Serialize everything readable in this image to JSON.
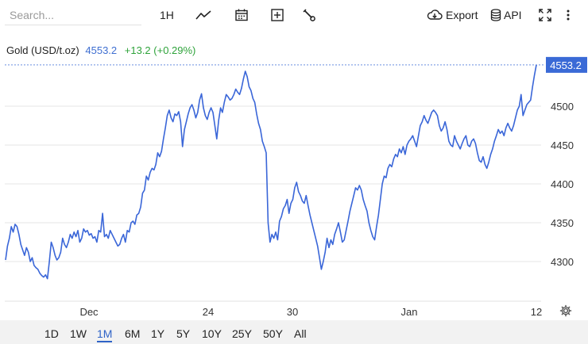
{
  "toolbar": {
    "search_placeholder": "Search...",
    "interval_label": "1H",
    "export_label": "Export",
    "api_label": "API",
    "icons": [
      "line-chart-icon",
      "calendar-icon",
      "plus-square-icon",
      "wrench-icon",
      "cloud-download-icon",
      "database-icon",
      "fullscreen-icon",
      "more-vertical-icon"
    ]
  },
  "symbol": {
    "name": "Gold (USD/t.oz)",
    "price": "4553.2",
    "change": "+13.2 (+0.29%)"
  },
  "ranges": [
    "1D",
    "1W",
    "1M",
    "6M",
    "1Y",
    "5Y",
    "10Y",
    "25Y",
    "50Y",
    "All"
  ],
  "active_range": "1M",
  "colors": {
    "line": "#3a66d8",
    "accent": "#2f63c7",
    "positive": "#2fa33b",
    "price_tag": "#3a6ad6"
  },
  "chart_data": {
    "type": "line",
    "title": "",
    "xlabel": "",
    "ylabel": "",
    "x_ticks": [
      "Dec",
      "24",
      "30",
      "Jan",
      "12"
    ],
    "y_ticks": [
      4300,
      4350,
      4400,
      4450,
      4500
    ],
    "ylim": [
      4270,
      4580
    ],
    "grid": "horizontal",
    "last_value_label": "4553.2",
    "series": [
      {
        "name": "",
        "values": [
          4302,
          4320,
          4330,
          4345,
          4338,
          4348,
          4345,
          4335,
          4322,
          4315,
          4308,
          4318,
          4312,
          4300,
          4305,
          4295,
          4292,
          4290,
          4285,
          4282,
          4280,
          4283,
          4278,
          4300,
          4325,
          4318,
          4308,
          4302,
          4305,
          4312,
          4330,
          4322,
          4318,
          4325,
          4335,
          4330,
          4338,
          4332,
          4340,
          4325,
          4330,
          4342,
          4338,
          4340,
          4334,
          4336,
          4330,
          4332,
          4325,
          4340,
          4338,
          4362,
          4332,
          4335,
          4330,
          4340,
          4335,
          4330,
          4325,
          4320,
          4322,
          4330,
          4335,
          4325,
          4340,
          4338,
          4350,
          4352,
          4348,
          4360,
          4362,
          4370,
          4388,
          4392,
          4410,
          4405,
          4415,
          4420,
          4418,
          4425,
          4440,
          4435,
          4442,
          4458,
          4472,
          4488,
          4495,
          4485,
          4480,
          4490,
          4488,
          4493,
          4480,
          4448,
          4470,
          4480,
          4490,
          4498,
          4502,
          4495,
          4485,
          4492,
          4508,
          4516,
          4498,
          4488,
          4483,
          4492,
          4498,
          4492,
          4475,
          4458,
          4482,
          4498,
          4492,
          4505,
          4515,
          4512,
          4508,
          4510,
          4515,
          4522,
          4518,
          4515,
          4523,
          4535,
          4545,
          4538,
          4525,
          4520,
          4510,
          4505,
          4490,
          4478,
          4470,
          4455,
          4448,
          4440,
          4350,
          4325,
          4335,
          4330,
          4338,
          4328,
          4352,
          4358,
          4368,
          4372,
          4380,
          4362,
          4375,
          4380,
          4395,
          4402,
          4390,
          4385,
          4378,
          4375,
          4385,
          4372,
          4360,
          4350,
          4340,
          4330,
          4320,
          4305,
          4290,
          4300,
          4312,
          4330,
          4318,
          4328,
          4322,
          4335,
          4342,
          4350,
          4338,
          4325,
          4328,
          4340,
          4352,
          4365,
          4375,
          4385,
          4395,
          4392,
          4398,
          4392,
          4380,
          4372,
          4365,
          4350,
          4340,
          4332,
          4328,
          4345,
          4360,
          4380,
          4400,
          4410,
          4408,
          4420,
          4425,
          4422,
          4432,
          4438,
          4435,
          4445,
          4440,
          4448,
          4438,
          4450,
          4455,
          4458,
          4462,
          4455,
          4448,
          4462,
          4475,
          4480,
          4488,
          4482,
          4478,
          4485,
          4492,
          4495,
          4492,
          4488,
          4475,
          4468,
          4472,
          4480,
          4470,
          4455,
          4450,
          4448,
          4462,
          4455,
          4450,
          4445,
          4452,
          4458,
          4462,
          4450,
          4448,
          4455,
          4458,
          4452,
          4440,
          4430,
          4428,
          4435,
          4425,
          4420,
          4428,
          4438,
          4445,
          4455,
          4462,
          4470,
          4465,
          4468,
          4462,
          4472,
          4478,
          4472,
          4468,
          4475,
          4485,
          4495,
          4500,
          4515,
          4488,
          4495,
          4502,
          4505,
          4508,
          4525,
          4540,
          4553.2
        ]
      }
    ]
  }
}
